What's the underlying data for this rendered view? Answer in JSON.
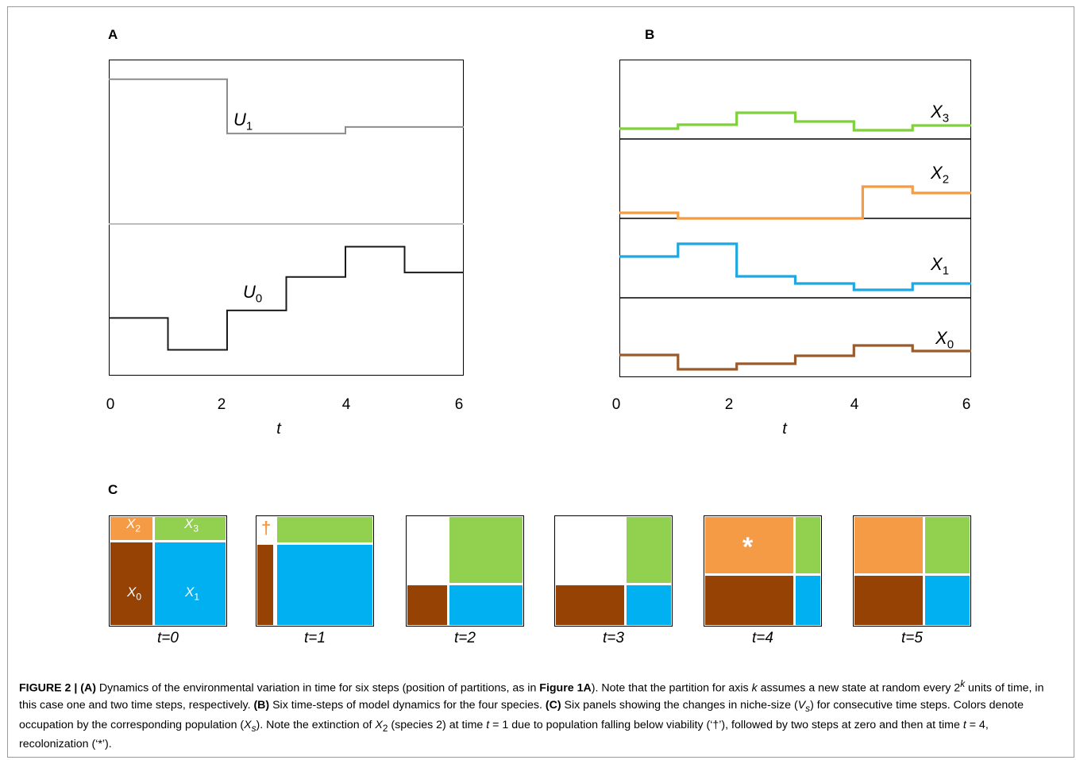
{
  "figure": {
    "panel_labels": {
      "a": "A",
      "b": "B",
      "c": "C"
    },
    "x_axis_title": "t",
    "x_ticks": [
      "0",
      "2",
      "4",
      "6"
    ]
  },
  "chart_data": [
    {
      "panel": "A",
      "type": "line",
      "xlabel": "t",
      "xlim": [
        0,
        6
      ],
      "x_ticks": [
        0,
        2,
        4,
        6
      ],
      "series": [
        {
          "name": "U1",
          "label_base": "U",
          "label_sub": "1",
          "color": "#8c8c8c",
          "x": [
            0,
            2,
            2,
            4,
            4,
            6
          ],
          "y": [
            0.88,
            0.88,
            0.55,
            0.55,
            0.59,
            0.59
          ]
        },
        {
          "name": "U0",
          "label_base": "U",
          "label_sub": "0",
          "color": "#1a1a1a",
          "x": [
            0,
            1,
            1,
            2,
            2,
            3,
            3,
            4,
            4,
            5,
            5,
            6
          ],
          "y": [
            0.38,
            0.38,
            0.17,
            0.17,
            0.43,
            0.43,
            0.65,
            0.65,
            0.85,
            0.85,
            0.68,
            0.68
          ]
        }
      ],
      "divider_color": "#bdbdbd"
    },
    {
      "panel": "B",
      "type": "line",
      "xlabel": "t",
      "xlim": [
        0,
        6
      ],
      "x_ticks": [
        0,
        2,
        4,
        6
      ],
      "series": [
        {
          "name": "X3",
          "label_base": "X",
          "label_sub": "3",
          "color": "#7ed13a",
          "x": [
            0,
            1,
            1,
            2,
            2,
            3,
            3,
            4,
            4,
            5,
            5,
            6
          ],
          "y": [
            0.13,
            0.13,
            0.18,
            0.18,
            0.33,
            0.33,
            0.22,
            0.22,
            0.11,
            0.11,
            0.17,
            0.17
          ]
        },
        {
          "name": "X2",
          "label_base": "X",
          "label_sub": "2",
          "color": "#f59a45",
          "x": [
            0,
            1,
            1,
            4.15,
            4.15,
            5,
            5,
            6
          ],
          "y": [
            0.07,
            0.07,
            0.0,
            0.0,
            0.4,
            0.4,
            0.32,
            0.32
          ]
        },
        {
          "name": "X1",
          "label_base": "X",
          "label_sub": "1",
          "color": "#1ea7e1",
          "x": [
            0,
            1,
            1,
            2,
            2,
            3,
            3,
            4,
            4,
            5,
            5,
            6
          ],
          "y": [
            0.52,
            0.52,
            0.68,
            0.68,
            0.27,
            0.27,
            0.18,
            0.18,
            0.1,
            0.1,
            0.18,
            0.18
          ]
        },
        {
          "name": "X0",
          "label_base": "X",
          "label_sub": "0",
          "color": "#9a5a2a",
          "x": [
            0,
            1,
            1,
            2,
            2,
            3,
            3,
            4,
            4,
            5,
            5,
            6
          ],
          "y": [
            0.28,
            0.28,
            0.1,
            0.1,
            0.17,
            0.17,
            0.27,
            0.27,
            0.4,
            0.4,
            0.33,
            0.33
          ]
        }
      ]
    }
  ],
  "panel_c": {
    "colors": {
      "X0": "#964205",
      "X1": "#00b0f0",
      "X2": "#f59a45",
      "X3": "#92d050"
    },
    "cell_labels": {
      "X0": {
        "base": "X",
        "sub": "0"
      },
      "X1": {
        "base": "X",
        "sub": "1"
      },
      "X2": {
        "base": "X",
        "sub": "2"
      },
      "X3": {
        "base": "X",
        "sub": "3"
      }
    },
    "extinction_marker": "†",
    "recolonization_marker": "*",
    "steps": [
      {
        "label": "t=0",
        "split_x": 0.37,
        "split_y": 0.22
      },
      {
        "label": "t=1",
        "split_x": 0.16,
        "split_y": 0.24
      },
      {
        "label": "t=2",
        "split_x": 0.35,
        "split_y": 0.62
      },
      {
        "label": "t=3",
        "split_x": 0.6,
        "split_y": 0.62
      },
      {
        "label": "t=4",
        "split_x": 0.77,
        "split_y": 0.53
      },
      {
        "label": "t=5",
        "split_x": 0.6,
        "split_y": 0.53
      }
    ]
  },
  "caption": {
    "fig": "FIGURE 2 | (A)",
    "t1": " Dynamics of the environmental variation in time for six steps (position of partitions, as in ",
    "ref": "Figure 1A",
    "t2": "). Note that the partition for axis ",
    "k": "k",
    "t3": " assumes a new state at random every 2",
    "t4": " units of time, in this case one and two time steps, respectively. ",
    "b": "(B)",
    "t5": " Six time-steps of model dynamics for the four species. ",
    "c": "(C)",
    "t6": " Six panels showing the changes in niche-size (",
    "vs_base": "V",
    "vs_sub": "s",
    "t7": ") for consecutive time steps. Colors denote occupation by the corresponding population (",
    "xs_base": "X",
    "xs_sub": "s",
    "t8": "). Note the extinction of ",
    "x2_base": "X",
    "x2_sub": "2",
    "t9": " (species 2) at time ",
    "t_var": "t",
    "t10": " = 1 due to population falling below viability (‘†’), followed by two steps at zero and then at time ",
    "t11": " = 4, recolonization (‘*’)."
  }
}
